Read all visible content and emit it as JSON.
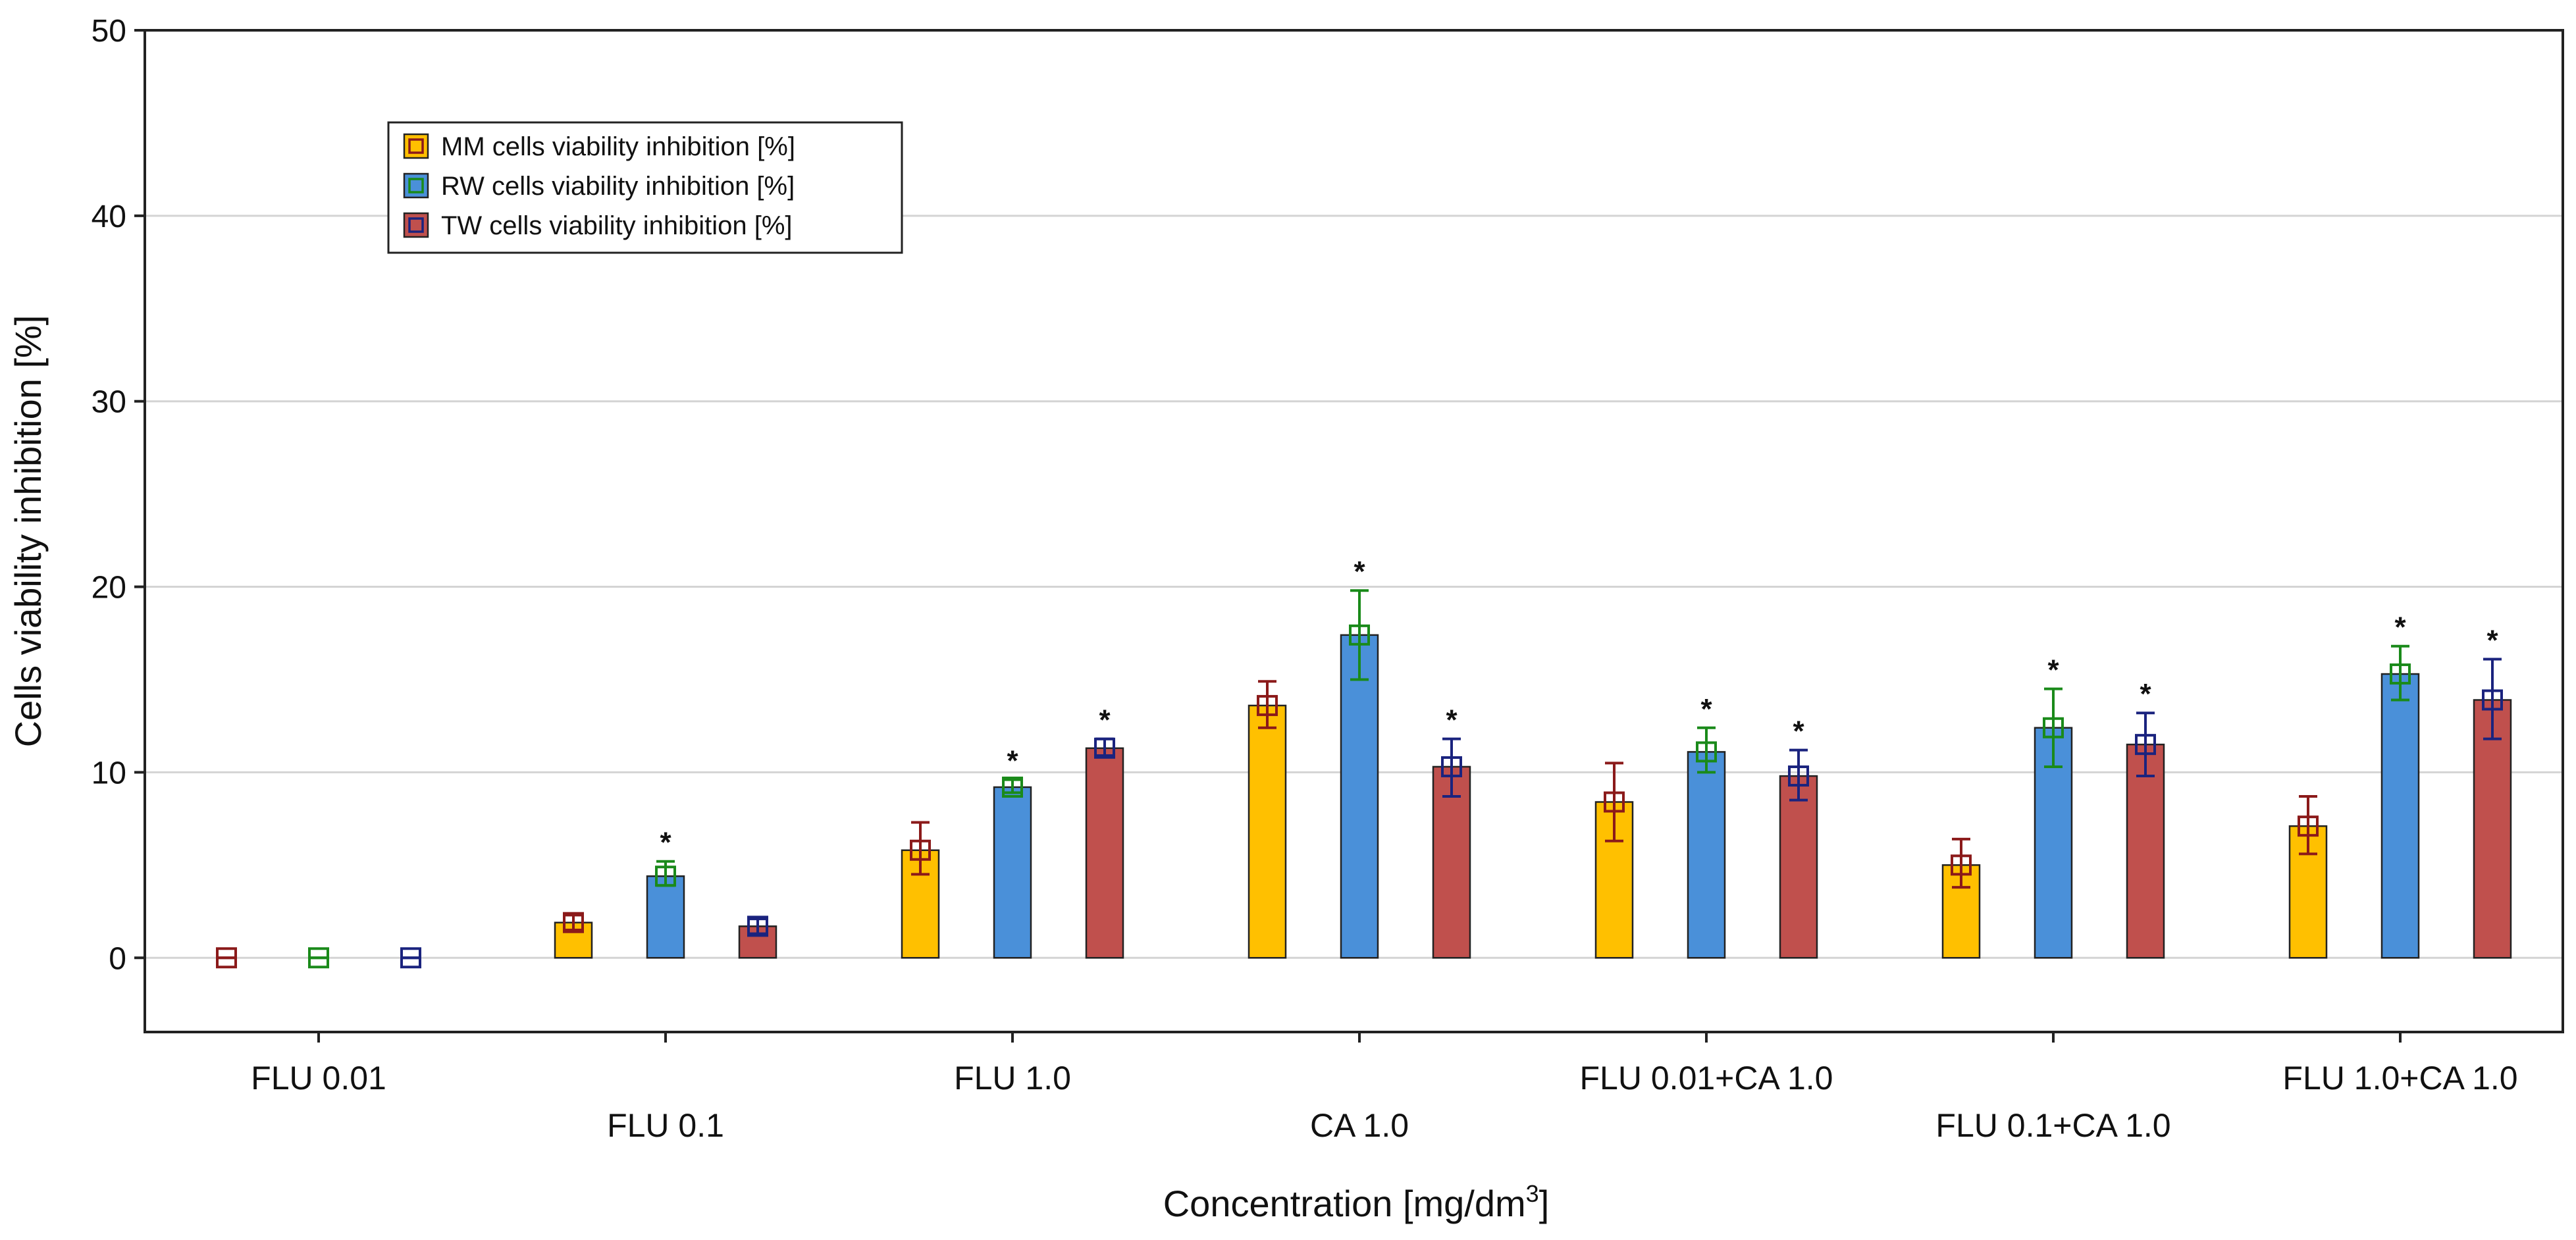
{
  "chart_data": {
    "type": "bar",
    "title": "",
    "xlabel": "Concentration [mg/dm",
    "xlabel_sup": "3",
    "xlabel_end": "]",
    "ylabel": "Cells viability inhibition [%]",
    "ylim": [
      -4,
      50
    ],
    "yticks": [
      0,
      10,
      20,
      30,
      40,
      50
    ],
    "grid": true,
    "legend_position": "top-left",
    "categories": [
      "FLU 0.01",
      "FLU 0.1",
      "FLU 1.0",
      "CA 1.0",
      "FLU 0.01+CA 1.0",
      "FLU 0.1+CA 1.0",
      "FLU 1.0+CA 1.0"
    ],
    "series": [
      {
        "name": "MM cells viability inhibition [%]",
        "color": "#FFC000",
        "marker_color": "#8B1A1A",
        "values": [
          0,
          1.9,
          5.8,
          13.6,
          8.4,
          5.0,
          7.1
        ],
        "err_low": [
          0,
          1.5,
          4.5,
          12.4,
          6.3,
          3.8,
          5.6
        ],
        "err_high": [
          0,
          2.3,
          7.3,
          14.9,
          10.5,
          6.4,
          8.7
        ],
        "significant": [
          false,
          false,
          false,
          false,
          false,
          false,
          false
        ]
      },
      {
        "name": "RW cells viability inhibition [%]",
        "color": "#4A90D9",
        "marker_color": "#1A8A1A",
        "values": [
          0,
          4.4,
          9.2,
          17.4,
          11.1,
          12.4,
          15.3
        ],
        "err_low": [
          0,
          3.9,
          8.9,
          15.0,
          10.0,
          10.3,
          13.9
        ],
        "err_high": [
          0,
          5.2,
          9.6,
          19.8,
          12.4,
          14.5,
          16.8
        ],
        "significant": [
          false,
          true,
          true,
          true,
          true,
          true,
          true
        ]
      },
      {
        "name": "TW cells viability inhibition [%]",
        "color": "#C0504D",
        "marker_color": "#1A237E",
        "values": [
          0,
          1.7,
          11.3,
          10.3,
          9.8,
          11.5,
          13.9
        ],
        "err_low": [
          0,
          1.3,
          10.9,
          8.7,
          8.5,
          9.8,
          11.8
        ],
        "err_high": [
          0,
          2.1,
          11.8,
          11.8,
          11.2,
          13.2,
          16.1
        ],
        "significant": [
          false,
          false,
          true,
          true,
          true,
          true,
          true
        ]
      }
    ],
    "annotation_symbol": "*"
  }
}
